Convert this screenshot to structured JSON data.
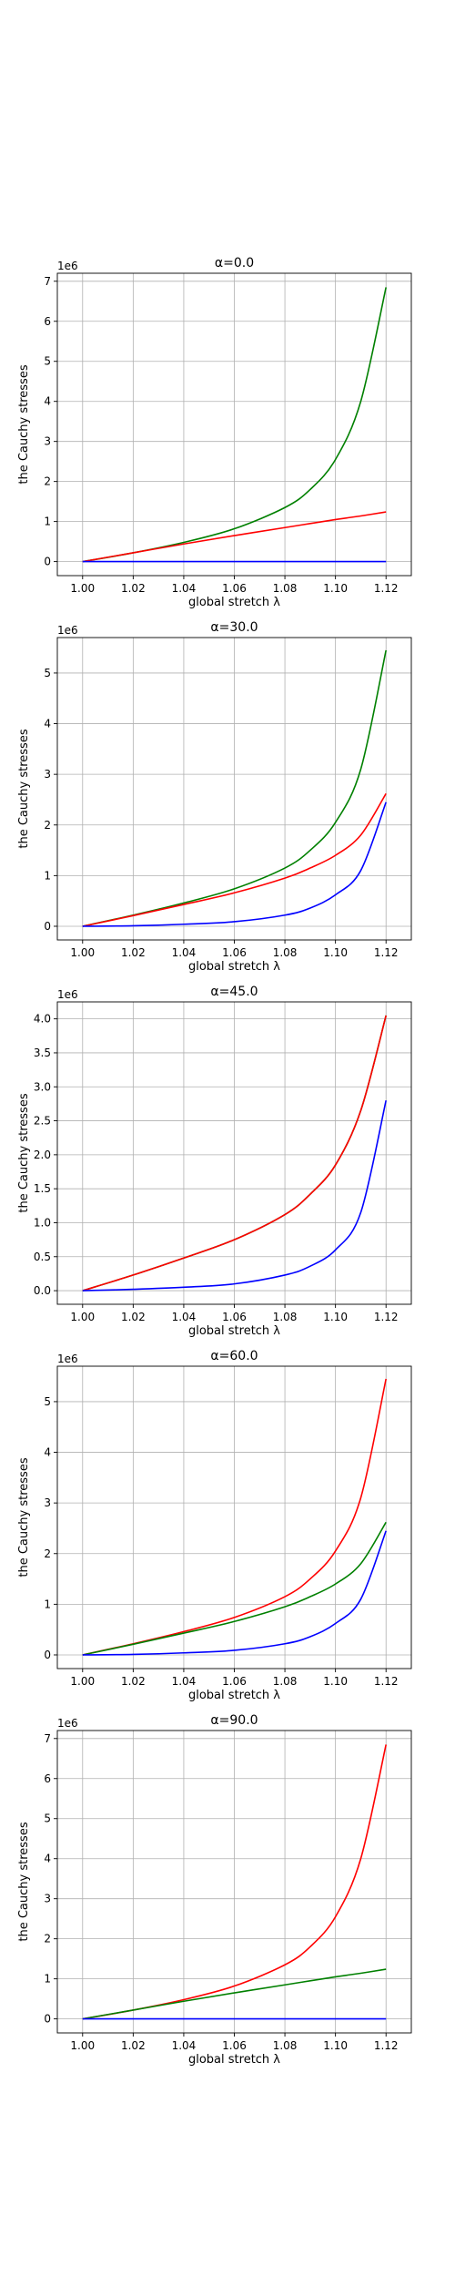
{
  "chart_data": [
    {
      "type": "line",
      "title": "α=0.0",
      "xlabel": "global stretch λ",
      "ylabel": "the Cauchy stresses",
      "offset_label": "1e6",
      "xlim": [
        0.99,
        1.13
      ],
      "ylim": [
        -0.35,
        7.2
      ],
      "xticks": [
        1.0,
        1.02,
        1.04,
        1.06,
        1.08,
        1.1,
        1.12
      ],
      "xtick_labels": [
        "1.00",
        "1.02",
        "1.04",
        "1.06",
        "1.08",
        "1.10",
        "1.12"
      ],
      "yticks": [
        0,
        1,
        2,
        3,
        4,
        5,
        6,
        7
      ],
      "ytick_labels": [
        "0",
        "1",
        "2",
        "3",
        "4",
        "5",
        "6",
        "7"
      ],
      "grid": true,
      "x": [
        1.0,
        1.02,
        1.04,
        1.06,
        1.08,
        1.09,
        1.1,
        1.11,
        1.12
      ],
      "series": [
        {
          "color": "#008000",
          "values": [
            0,
            0.22,
            0.48,
            0.82,
            1.35,
            1.8,
            2.55,
            4.0,
            6.85
          ]
        },
        {
          "color": "#ff0000",
          "values": [
            0,
            0.22,
            0.44,
            0.65,
            0.85,
            0.95,
            1.05,
            1.14,
            1.24
          ]
        },
        {
          "color": "#0000ff",
          "values": [
            0,
            0,
            0,
            0,
            0,
            0,
            0,
            0,
            0
          ]
        }
      ]
    },
    {
      "type": "line",
      "title": "α=30.0",
      "xlabel": "global stretch λ",
      "ylabel": "the Cauchy stresses",
      "offset_label": "1e6",
      "xlim": [
        0.99,
        1.13
      ],
      "ylim": [
        -0.27,
        5.7
      ],
      "xticks": [
        1.0,
        1.02,
        1.04,
        1.06,
        1.08,
        1.1,
        1.12
      ],
      "xtick_labels": [
        "1.00",
        "1.02",
        "1.04",
        "1.06",
        "1.08",
        "1.10",
        "1.12"
      ],
      "yticks": [
        0,
        1,
        2,
        3,
        4,
        5
      ],
      "ytick_labels": [
        "0",
        "1",
        "2",
        "3",
        "4",
        "5"
      ],
      "grid": true,
      "x": [
        1.0,
        1.02,
        1.04,
        1.06,
        1.08,
        1.09,
        1.1,
        1.11,
        1.12
      ],
      "series": [
        {
          "color": "#008000",
          "values": [
            0,
            0.22,
            0.46,
            0.74,
            1.15,
            1.5,
            2.05,
            3.1,
            5.45
          ]
        },
        {
          "color": "#ff0000",
          "values": [
            0,
            0.21,
            0.43,
            0.66,
            0.95,
            1.15,
            1.4,
            1.8,
            2.62
          ]
        },
        {
          "color": "#0000ff",
          "values": [
            0,
            0.01,
            0.04,
            0.09,
            0.22,
            0.36,
            0.62,
            1.1,
            2.45
          ]
        }
      ]
    },
    {
      "type": "line",
      "title": "α=45.0",
      "xlabel": "global stretch λ",
      "ylabel": "the Cauchy stresses",
      "offset_label": "1e6",
      "xlim": [
        0.99,
        1.13
      ],
      "ylim": [
        -0.2,
        4.25
      ],
      "xticks": [
        1.0,
        1.02,
        1.04,
        1.06,
        1.08,
        1.1,
        1.12
      ],
      "xtick_labels": [
        "1.00",
        "1.02",
        "1.04",
        "1.06",
        "1.08",
        "1.10",
        "1.12"
      ],
      "yticks": [
        0,
        0.5,
        1,
        1.5,
        2,
        2.5,
        3,
        3.5,
        4
      ],
      "ytick_labels": [
        "0.0",
        "0.5",
        "1.0",
        "1.5",
        "2.0",
        "2.5",
        "3.0",
        "3.5",
        "4.0"
      ],
      "grid": true,
      "x": [
        1.0,
        1.02,
        1.04,
        1.06,
        1.08,
        1.09,
        1.1,
        1.11,
        1.12
      ],
      "series": [
        {
          "color": "#008000",
          "values": [
            0,
            0.23,
            0.48,
            0.75,
            1.12,
            1.42,
            1.85,
            2.65,
            4.05
          ]
        },
        {
          "color": "#ff0000",
          "values": [
            0,
            0.23,
            0.48,
            0.75,
            1.12,
            1.42,
            1.85,
            2.65,
            4.05
          ]
        },
        {
          "color": "#0000ff",
          "values": [
            0,
            0.02,
            0.05,
            0.1,
            0.23,
            0.36,
            0.6,
            1.15,
            2.8
          ]
        }
      ]
    },
    {
      "type": "line",
      "title": "α=60.0",
      "xlabel": "global stretch λ",
      "ylabel": "the Cauchy stresses",
      "offset_label": "1e6",
      "xlim": [
        0.99,
        1.13
      ],
      "ylim": [
        -0.27,
        5.7
      ],
      "xticks": [
        1.0,
        1.02,
        1.04,
        1.06,
        1.08,
        1.1,
        1.12
      ],
      "xtick_labels": [
        "1.00",
        "1.02",
        "1.04",
        "1.06",
        "1.08",
        "1.10",
        "1.12"
      ],
      "yticks": [
        0,
        1,
        2,
        3,
        4,
        5
      ],
      "ytick_labels": [
        "0",
        "1",
        "2",
        "3",
        "4",
        "5"
      ],
      "grid": true,
      "x": [
        1.0,
        1.02,
        1.04,
        1.06,
        1.08,
        1.09,
        1.1,
        1.11,
        1.12
      ],
      "series": [
        {
          "color": "#ff0000",
          "values": [
            0,
            0.22,
            0.46,
            0.74,
            1.15,
            1.5,
            2.05,
            3.1,
            5.45
          ]
        },
        {
          "color": "#008000",
          "values": [
            0,
            0.21,
            0.43,
            0.66,
            0.95,
            1.15,
            1.4,
            1.8,
            2.62
          ]
        },
        {
          "color": "#0000ff",
          "values": [
            0,
            0.01,
            0.04,
            0.09,
            0.22,
            0.36,
            0.62,
            1.1,
            2.45
          ]
        }
      ]
    },
    {
      "type": "line",
      "title": "α=90.0",
      "xlabel": "global stretch λ",
      "ylabel": "the Cauchy stresses",
      "offset_label": "1e6",
      "xlim": [
        0.99,
        1.13
      ],
      "ylim": [
        -0.35,
        7.2
      ],
      "xticks": [
        1.0,
        1.02,
        1.04,
        1.06,
        1.08,
        1.1,
        1.12
      ],
      "xtick_labels": [
        "1.00",
        "1.02",
        "1.04",
        "1.06",
        "1.08",
        "1.10",
        "1.12"
      ],
      "yticks": [
        0,
        1,
        2,
        3,
        4,
        5,
        6,
        7
      ],
      "ytick_labels": [
        "0",
        "1",
        "2",
        "3",
        "4",
        "5",
        "6",
        "7"
      ],
      "grid": true,
      "x": [
        1.0,
        1.02,
        1.04,
        1.06,
        1.08,
        1.09,
        1.1,
        1.11,
        1.12
      ],
      "series": [
        {
          "color": "#ff0000",
          "values": [
            0,
            0.22,
            0.48,
            0.82,
            1.35,
            1.8,
            2.55,
            4.0,
            6.85
          ]
        },
        {
          "color": "#008000",
          "values": [
            0,
            0.22,
            0.44,
            0.65,
            0.85,
            0.95,
            1.05,
            1.14,
            1.24
          ]
        },
        {
          "color": "#0000ff",
          "values": [
            0,
            0,
            0,
            0,
            0,
            0,
            0,
            0,
            0
          ]
        }
      ]
    }
  ]
}
